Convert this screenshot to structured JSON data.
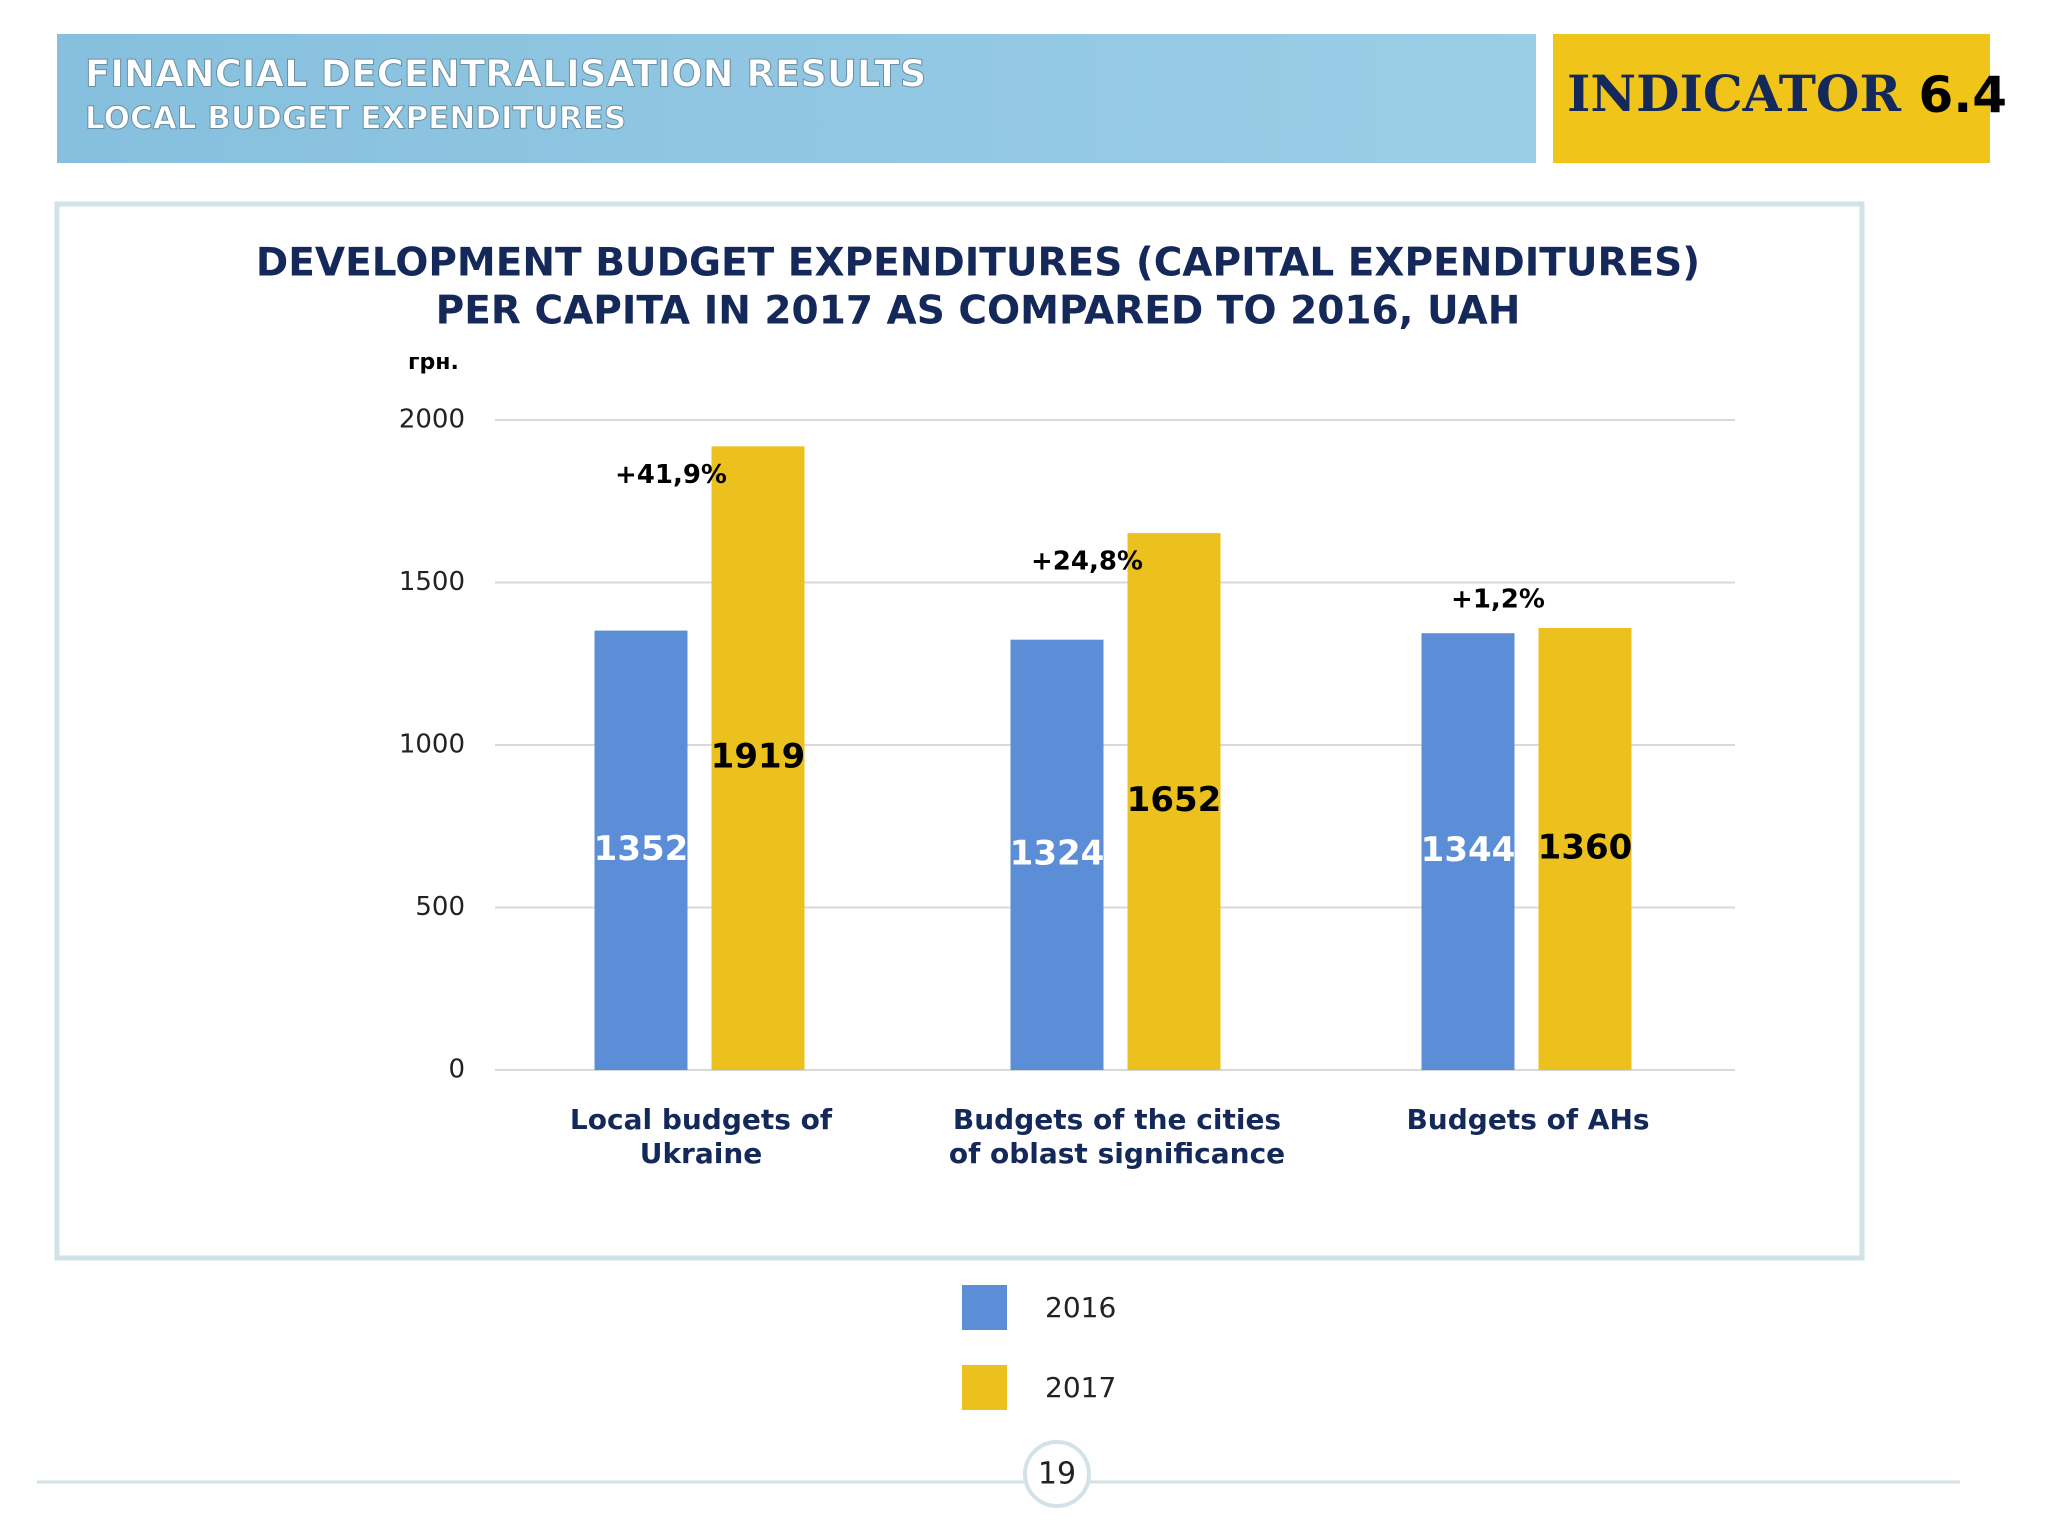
{
  "header": {
    "title": "FINANCIAL DECENTRALISATION RESULTS",
    "subtitle": "LOCAL BUDGET EXPENDITURES",
    "indicator_label": "INDICATOR",
    "indicator_number": "6.4"
  },
  "chart_data": {
    "type": "bar",
    "title": [
      "DEVELOPMENT BUDGET EXPENDITURES (CAPITAL EXPENDITURES)",
      "PER CAPITA IN 2017 AS COMPARED TO 2016, UAH"
    ],
    "y_label": "грн.",
    "categories": [
      "Local budgets of Ukraine",
      "Budgets of the cities of oblast significance",
      "Budgets of AHs"
    ],
    "series": [
      {
        "name": "2016",
        "color": "#5b8ed6",
        "values": [
          1352,
          1324,
          1344
        ]
      },
      {
        "name": "2017",
        "color": "#ecc11e",
        "values": [
          1919,
          1652,
          1360
        ]
      }
    ],
    "annotations": [
      "+41,9%",
      "+24,8%",
      "+1,2%"
    ],
    "ylim": [
      0,
      2000
    ],
    "yticks": [
      0,
      500,
      1000,
      1500,
      2000
    ],
    "grid": true
  },
  "page_number": "19"
}
